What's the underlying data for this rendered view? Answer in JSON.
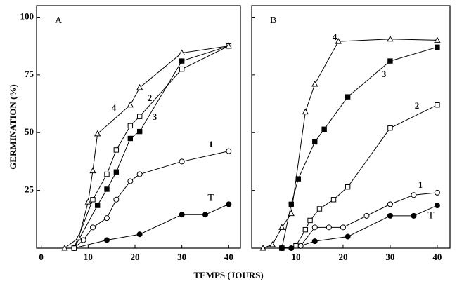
{
  "xlabel": "TEMPS (JOURS)",
  "chart_data": [
    {
      "type": "line",
      "panel": "A",
      "ylabel": "GERMINATION (%)",
      "xlim": [
        -1,
        42.5
      ],
      "ylim": [
        0,
        105
      ],
      "xticks": [
        0,
        10,
        20,
        30,
        40
      ],
      "yticks": [
        25,
        50,
        75,
        100
      ],
      "ytick_labels": true,
      "series": [
        {
          "name": "T",
          "marker": "circle",
          "color": "#000000",
          "x": [
            7,
            14,
            21,
            30,
            35,
            40
          ],
          "values": [
            0,
            3.5,
            6,
            14.5,
            14.5,
            19
          ]
        },
        {
          "name": "1",
          "marker": "circle",
          "color": "#ffffff",
          "x": [
            7,
            9,
            11,
            14,
            16,
            19,
            21,
            30,
            40
          ],
          "values": [
            0,
            3.5,
            9,
            13,
            21,
            29,
            32,
            37.5,
            42
          ]
        },
        {
          "name": "3",
          "marker": "square",
          "color": "#000000",
          "x": [
            7,
            12,
            14,
            16,
            19,
            21,
            30,
            40
          ],
          "values": [
            0,
            18.5,
            25.5,
            33,
            47.5,
            50.5,
            81,
            87.5
          ]
        },
        {
          "name": "2",
          "marker": "square",
          "color": "#ffffff",
          "x": [
            7,
            11,
            14,
            16,
            19,
            21,
            30,
            40
          ],
          "values": [
            0,
            21,
            32,
            42.5,
            53,
            57,
            77.5,
            87.5
          ]
        },
        {
          "name": "4",
          "marker": "triangle",
          "color": "#ffffff",
          "x": [
            5,
            8,
            10,
            11,
            12,
            19,
            21,
            30,
            40
          ],
          "values": [
            0,
            4.5,
            20,
            33.5,
            49.5,
            62,
            69.5,
            84.5,
            87.5
          ]
        }
      ]
    },
    {
      "type": "line",
      "panel": "B",
      "xlim": [
        0.6,
        42.7
      ],
      "ylim": [
        0,
        105
      ],
      "xticks": [
        10,
        20,
        30,
        40
      ],
      "yticks": [
        25,
        50,
        75,
        100
      ],
      "ytick_labels": false,
      "series": [
        {
          "name": "T",
          "marker": "circle",
          "color": "#000000",
          "x": [
            7,
            9,
            11,
            14,
            21,
            30,
            35,
            40
          ],
          "values": [
            0,
            0,
            1,
            3,
            5,
            14,
            14,
            18.5
          ]
        },
        {
          "name": "1",
          "marker": "circle",
          "color": "#ffffff",
          "x": [
            7,
            11,
            14,
            17,
            20,
            25,
            30,
            35,
            40
          ],
          "values": [
            0,
            1,
            9,
            9,
            9,
            14,
            19,
            23,
            24
          ]
        },
        {
          "name": "2",
          "marker": "square",
          "color": "#ffffff",
          "x": [
            7,
            10,
            12,
            13,
            15,
            18,
            21,
            30,
            40
          ],
          "values": [
            0,
            1,
            8,
            12,
            17,
            21,
            26.5,
            52,
            62
          ]
        },
        {
          "name": "3",
          "marker": "square",
          "color": "#000000",
          "x": [
            7,
            9,
            10.5,
            14,
            16,
            21,
            30,
            40
          ],
          "values": [
            0,
            19,
            30,
            46,
            51.5,
            65.5,
            81,
            87
          ]
        },
        {
          "name": "4",
          "marker": "triangle",
          "color": "#ffffff",
          "x": [
            3,
            5,
            7,
            9,
            12,
            14,
            19,
            30,
            40
          ],
          "values": [
            0,
            1.5,
            9,
            15,
            59,
            71,
            89.5,
            90.5,
            90
          ]
        }
      ]
    }
  ]
}
